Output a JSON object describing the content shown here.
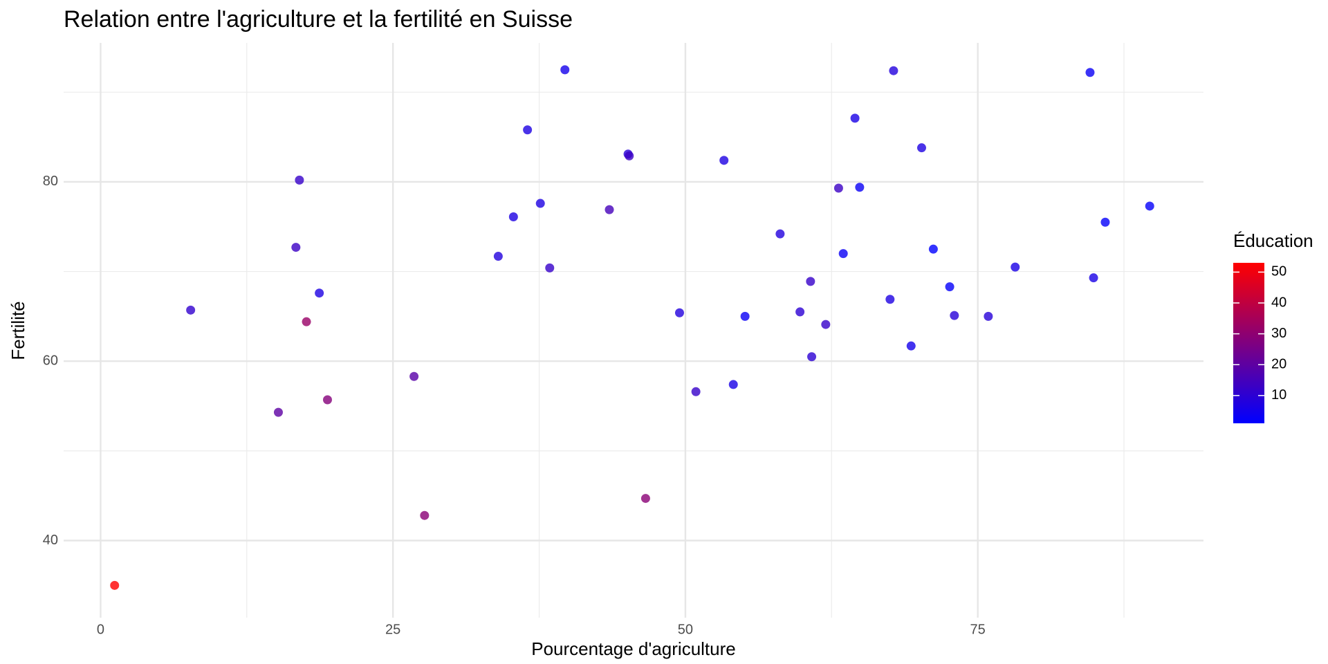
{
  "chart_data": {
    "type": "scatter",
    "title": "Relation entre l'agriculture et la fertilité en Suisse",
    "x_label": "Pourcentage d'agriculture",
    "y_label": "Fertilité",
    "legend_title": "Éducation",
    "x": [
      17.0,
      45.1,
      39.7,
      36.5,
      43.5,
      35.3,
      70.2,
      67.8,
      53.3,
      45.2,
      64.5,
      62.0,
      67.5,
      60.7,
      69.3,
      72.6,
      34.0,
      19.4,
      15.2,
      73.0,
      59.8,
      55.1,
      50.9,
      54.1,
      71.2,
      58.1,
      63.5,
      60.8,
      26.8,
      49.5,
      85.9,
      84.9,
      89.7,
      78.2,
      64.9,
      75.9,
      84.6,
      63.1,
      38.4,
      7.7,
      16.7,
      17.6,
      37.6,
      18.7,
      1.2,
      46.6,
      27.7
    ],
    "y": [
      80.2,
      83.1,
      92.5,
      85.8,
      76.9,
      76.1,
      83.8,
      92.4,
      82.4,
      82.9,
      87.1,
      64.1,
      66.9,
      68.9,
      61.7,
      68.3,
      71.7,
      55.7,
      54.3,
      65.1,
      65.5,
      65.0,
      56.6,
      57.4,
      72.5,
      74.2,
      72.0,
      60.5,
      58.3,
      65.4,
      75.5,
      69.3,
      77.3,
      70.5,
      79.4,
      65.0,
      92.2,
      79.3,
      70.4,
      65.7,
      72.7,
      64.4,
      77.6,
      67.6,
      35.0,
      44.7,
      42.8
    ],
    "color_values": [
      12,
      9,
      5,
      7,
      15,
      7,
      7,
      8,
      7,
      13,
      6,
      12,
      7,
      12,
      5,
      2,
      8,
      28,
      20,
      9,
      10,
      3,
      12,
      6,
      1,
      8,
      3,
      10,
      19,
      8,
      2,
      6,
      2,
      6,
      3,
      9,
      3,
      13,
      12,
      11,
      13,
      32,
      7,
      7,
      53,
      29,
      29
    ],
    "color_low": "#0000ff",
    "color_high": "#ff0000",
    "color_lim": [
      1,
      53
    ],
    "color_ticks": [
      10,
      20,
      30,
      40,
      50
    ],
    "opacity": 0.8,
    "xlim": [
      -3.16,
      94.3
    ],
    "ylim": [
      31.4,
      95.5
    ],
    "xticks": [
      0,
      25,
      50,
      75
    ],
    "yticks": [
      40,
      60,
      80
    ],
    "xminor": [
      12.5,
      37.5,
      62.5,
      87.5
    ],
    "yminor": [
      50,
      70,
      90
    ],
    "grid": true
  }
}
